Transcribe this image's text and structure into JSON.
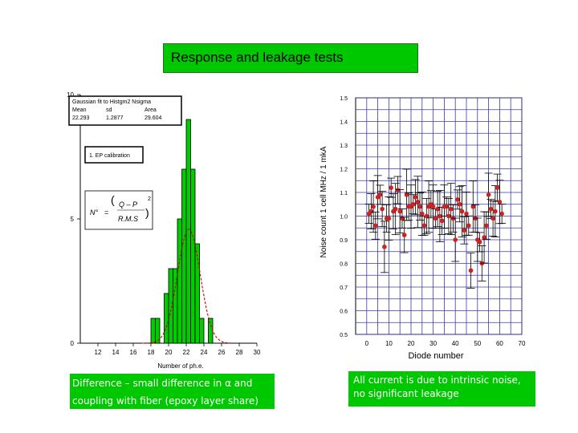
{
  "title": "Response and leakage tests",
  "note_left": "Difference – small difference in α and coupling with fiber (epoxy layer share)",
  "note_right": "All current is due to intrinsic noise, no significant leakage",
  "chart_data": [
    {
      "type": "bar",
      "title": "",
      "xlabel": "Number of ph.e.",
      "ylabel": "",
      "xlim": [
        10,
        30
      ],
      "ylim": [
        0,
        10
      ],
      "xticks": [
        "12",
        "14",
        "16",
        "18",
        "20",
        "22",
        "24",
        "26",
        "28",
        "30"
      ],
      "yticks": [
        "0",
        "5",
        "10"
      ],
      "bin_width": 0.5,
      "bins": [
        {
          "x": 18.0,
          "count": 1
        },
        {
          "x": 18.5,
          "count": 1
        },
        {
          "x": 19.5,
          "count": 2
        },
        {
          "x": 20.0,
          "count": 3
        },
        {
          "x": 20.5,
          "count": 3
        },
        {
          "x": 21.0,
          "count": 5
        },
        {
          "x": 21.5,
          "count": 7
        },
        {
          "x": 22.0,
          "count": 9
        },
        {
          "x": 22.5,
          "count": 7
        },
        {
          "x": 23.0,
          "count": 4
        },
        {
          "x": 23.5,
          "count": 1
        },
        {
          "x": 24.5,
          "count": 1
        }
      ],
      "fit_curve": {
        "color": "#cc0000",
        "mean": 22.293,
        "sigma": 1.2877,
        "area": 29.604
      },
      "stats_box": {
        "caption": "Gaussian fit to Histgm2 Nsigma",
        "headers": [
          "Mean",
          "sd",
          "Area"
        ],
        "values": [
          "22.293",
          "1.2877",
          "29.604"
        ]
      },
      "calibration_label": "1. EP calibration",
      "formula": {
        "lhs": "N°",
        "num": "Q – P",
        "den": "R.M.S",
        "exp": "2"
      },
      "bar_color": "#00cc00"
    },
    {
      "type": "scatter",
      "title": "",
      "xlabel": "Diode number",
      "ylabel": "Noise count 1 cell MHz / 1 mkA",
      "xlim": [
        -5,
        70
      ],
      "ylim": [
        0.5,
        1.5
      ],
      "xticks": [
        "0",
        "10",
        "20",
        "30",
        "40",
        "50",
        "60",
        "70"
      ],
      "yticks": [
        "0.5",
        "0.6",
        "0.7",
        "0.8",
        "0.9",
        "1.0",
        "1.1",
        "1.2",
        "1.3",
        "1.4",
        "1.5"
      ],
      "grid": true,
      "marker_color": "#cc2222",
      "points": [
        {
          "x": 1,
          "y": 1.01
        },
        {
          "x": 2,
          "y": 1.02
        },
        {
          "x": 3,
          "y": 1.04
        },
        {
          "x": 4,
          "y": 0.96
        },
        {
          "x": 5,
          "y": 1.08
        },
        {
          "x": 6,
          "y": 1.09
        },
        {
          "x": 7,
          "y": 1.03
        },
        {
          "x": 8,
          "y": 0.87
        },
        {
          "x": 9,
          "y": 0.99
        },
        {
          "x": 10,
          "y": 0.99
        },
        {
          "x": 11,
          "y": 1.12
        },
        {
          "x": 12,
          "y": 1.02
        },
        {
          "x": 13,
          "y": 1.03
        },
        {
          "x": 14,
          "y": 1.11
        },
        {
          "x": 15,
          "y": 1.02
        },
        {
          "x": 16,
          "y": 0.99
        },
        {
          "x": 17,
          "y": 0.92
        },
        {
          "x": 18,
          "y": 1.09
        },
        {
          "x": 19,
          "y": 1.04
        },
        {
          "x": 20,
          "y": 1.04
        },
        {
          "x": 21,
          "y": 1.05
        },
        {
          "x": 22,
          "y": 1.08
        },
        {
          "x": 23,
          "y": 1.06
        },
        {
          "x": 24,
          "y": 1.04
        },
        {
          "x": 25,
          "y": 1.01
        },
        {
          "x": 26,
          "y": 0.96
        },
        {
          "x": 27,
          "y": 1.0
        },
        {
          "x": 28,
          "y": 1.04
        },
        {
          "x": 29,
          "y": 1.05
        },
        {
          "x": 30,
          "y": 1.04
        },
        {
          "x": 31,
          "y": 0.99
        },
        {
          "x": 32,
          "y": 1.03
        },
        {
          "x": 33,
          "y": 1.0
        },
        {
          "x": 34,
          "y": 0.98
        },
        {
          "x": 35,
          "y": 1.04
        },
        {
          "x": 36,
          "y": 1.04
        },
        {
          "x": 37,
          "y": 1.0
        },
        {
          "x": 38,
          "y": 1.03
        },
        {
          "x": 39,
          "y": 0.99
        },
        {
          "x": 40,
          "y": 0.9
        },
        {
          "x": 41,
          "y": 1.07
        },
        {
          "x": 42,
          "y": 1.05
        },
        {
          "x": 43,
          "y": 1.02
        },
        {
          "x": 44,
          "y": 0.94
        },
        {
          "x": 45,
          "y": 1.01
        },
        {
          "x": 46,
          "y": 0.96
        },
        {
          "x": 47,
          "y": 0.77
        },
        {
          "x": 48,
          "y": 1.04
        },
        {
          "x": 49,
          "y": 0.99
        },
        {
          "x": 50,
          "y": 0.9
        },
        {
          "x": 51,
          "y": 0.89
        },
        {
          "x": 52,
          "y": 0.8
        },
        {
          "x": 53,
          "y": 0.91
        },
        {
          "x": 54,
          "y": 0.96
        },
        {
          "x": 55,
          "y": 1.09
        },
        {
          "x": 56,
          "y": 1.03
        },
        {
          "x": 57,
          "y": 0.99
        },
        {
          "x": 58,
          "y": 1.02
        },
        {
          "x": 59,
          "y": 1.12
        },
        {
          "x": 60,
          "y": 1.06
        },
        {
          "x": 61,
          "y": 1.01
        }
      ]
    }
  ]
}
